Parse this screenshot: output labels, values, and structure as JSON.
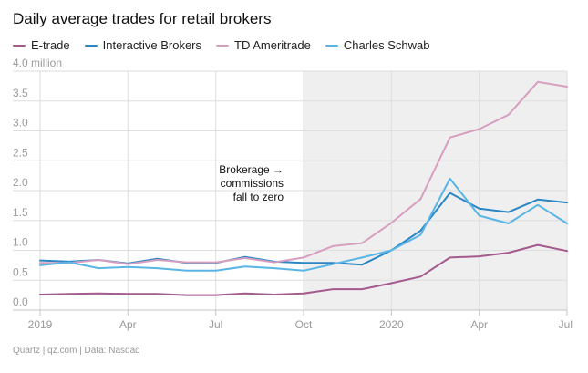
{
  "title": "Daily average trades for retail brokers",
  "footer": "Quartz | qz.com | Data: Nasdaq",
  "colors": {
    "etrade": "#a45a8d",
    "interactive": "#2a86c5",
    "ameritrade": "#d79fbf",
    "schwab": "#58b5e6",
    "shade": "#efefef",
    "grid": "#dedede",
    "axis": "#c4c4c4",
    "tick_text": "#9a9a9a"
  },
  "legend": [
    {
      "label": "E-trade",
      "color_key": "etrade"
    },
    {
      "label": "Interactive Brokers",
      "color_key": "interactive"
    },
    {
      "label": "TD Ameritrade",
      "color_key": "ameritrade"
    },
    {
      "label": "Charles Schwab",
      "color_key": "schwab"
    }
  ],
  "chart_data": {
    "type": "line",
    "x": [
      "2019-01",
      "2019-02",
      "2019-03",
      "2019-04",
      "2019-05",
      "2019-06",
      "2019-07",
      "2019-08",
      "2019-09",
      "2019-10",
      "2019-11",
      "2019-12",
      "2020-01",
      "2020-02",
      "2020-03",
      "2020-04",
      "2020-05",
      "2020-06",
      "2020-07"
    ],
    "x_tick_labels": [
      "2019",
      "Apr",
      "Jul",
      "Oct",
      "2020",
      "Apr",
      "Jul"
    ],
    "x_tick_values": [
      "2019-01",
      "2019-04",
      "2019-07",
      "2019-10",
      "2020-01",
      "2020-04",
      "2020-07"
    ],
    "y_ticks": [
      "0.0",
      "0.5",
      "1.0",
      "1.5",
      "2.0",
      "2.5",
      "3.0",
      "3.5",
      "4.0 million"
    ],
    "ylim": [
      0,
      4
    ],
    "grid": true,
    "shaded_region": {
      "start": "2019-10",
      "end": "2020-07"
    },
    "annotation": {
      "lines": [
        "Brokerage →",
        "commissions",
        "fall to zero"
      ],
      "x": "2019-10"
    },
    "series": [
      {
        "name": "E-trade",
        "color_key": "etrade",
        "values": [
          0.26,
          0.27,
          0.28,
          0.27,
          0.27,
          0.25,
          0.25,
          0.28,
          0.26,
          0.28,
          0.35,
          0.35,
          0.45,
          0.56,
          0.88,
          0.9,
          0.96,
          1.09,
          0.99
        ]
      },
      {
        "name": "Interactive Brokers",
        "color_key": "interactive",
        "values": [
          0.83,
          0.81,
          0.84,
          0.78,
          0.86,
          0.79,
          0.79,
          0.89,
          0.81,
          0.79,
          0.79,
          0.76,
          1.0,
          1.33,
          1.96,
          1.7,
          1.64,
          1.85,
          1.8
        ]
      },
      {
        "name": "TD Ameritrade",
        "color_key": "ameritrade",
        "values": [
          0.79,
          0.79,
          0.84,
          0.77,
          0.84,
          0.8,
          0.8,
          0.87,
          0.8,
          0.88,
          1.07,
          1.12,
          1.46,
          1.86,
          2.89,
          3.03,
          3.27,
          3.82,
          3.74
        ]
      },
      {
        "name": "Charles Schwab",
        "color_key": "schwab",
        "values": [
          0.75,
          0.8,
          0.7,
          0.72,
          0.7,
          0.66,
          0.66,
          0.73,
          0.7,
          0.66,
          0.77,
          0.88,
          1.0,
          1.26,
          2.2,
          1.58,
          1.45,
          1.76,
          1.45
        ]
      }
    ]
  }
}
